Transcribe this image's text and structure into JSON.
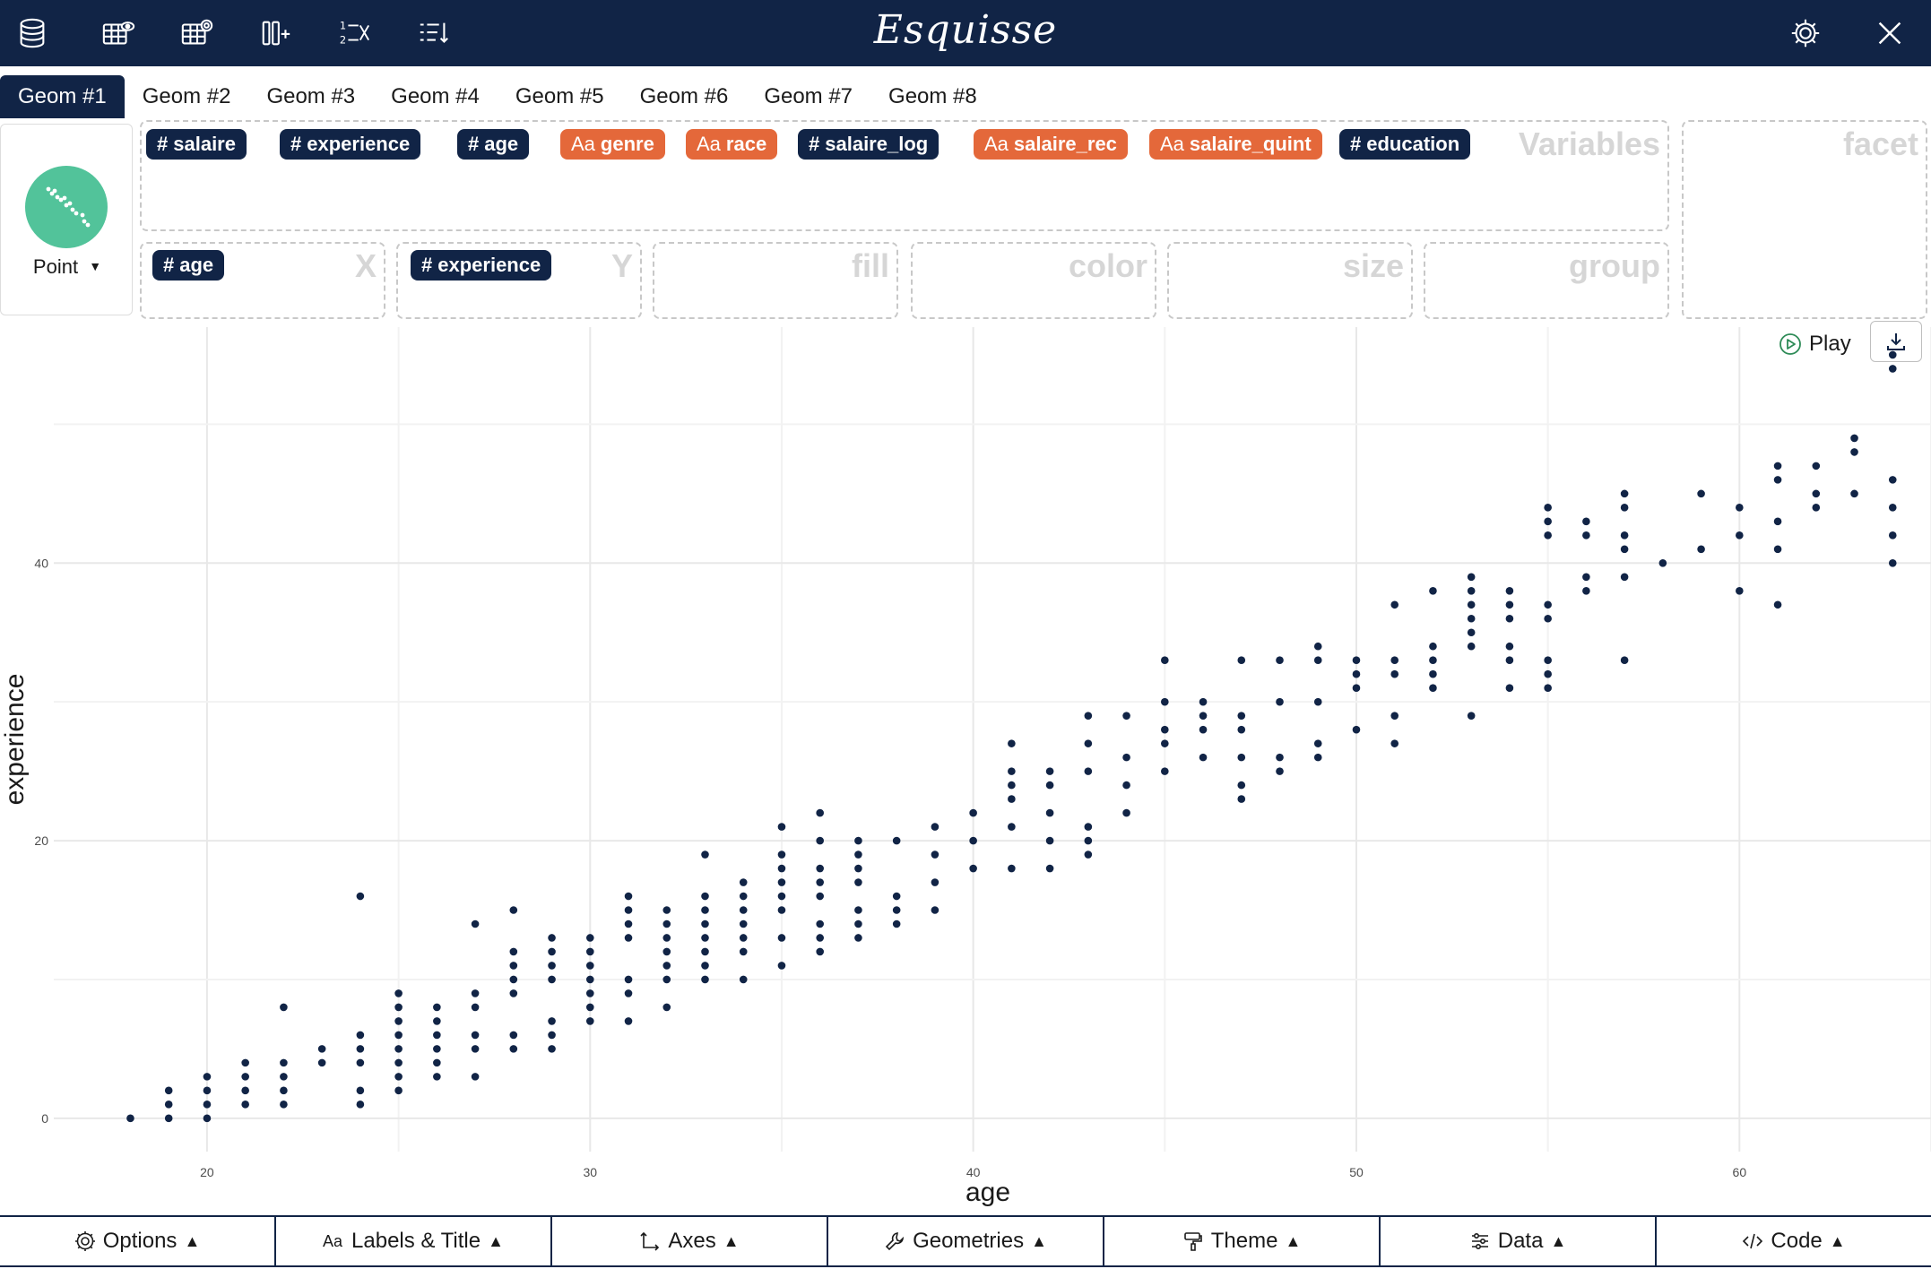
{
  "app": {
    "title": "Esquisse"
  },
  "toolbar": {
    "left_icons": [
      "database-icon",
      "table-view-icon",
      "table-settings-icon",
      "add-column-icon",
      "recode-factor-icon",
      "sort-icon"
    ],
    "right_icons": [
      "gear-icon",
      "close-icon"
    ]
  },
  "tabs": [
    {
      "label": "Geom #1",
      "active": true
    },
    {
      "label": "Geom #2"
    },
    {
      "label": "Geom #3"
    },
    {
      "label": "Geom #4"
    },
    {
      "label": "Geom #5"
    },
    {
      "label": "Geom #6"
    },
    {
      "label": "Geom #7"
    },
    {
      "label": "Geom #8"
    }
  ],
  "geom": {
    "label": "Point",
    "icon": "scatter-icon",
    "color": "#52c39a"
  },
  "variables": {
    "label": "Variables",
    "chips": [
      {
        "name": "salaire",
        "type": "numeric"
      },
      {
        "name": "experience",
        "type": "numeric"
      },
      {
        "name": "age",
        "type": "numeric"
      },
      {
        "name": "genre",
        "type": "character"
      },
      {
        "name": "race",
        "type": "character"
      },
      {
        "name": "salaire_log",
        "type": "numeric"
      },
      {
        "name": "salaire_rec",
        "type": "character"
      },
      {
        "name": "salaire_quint",
        "type": "character"
      },
      {
        "name": "education",
        "type": "numeric"
      }
    ]
  },
  "zones": {
    "facet": "facet",
    "x": {
      "label": "X",
      "chip": "age"
    },
    "y": {
      "label": "Y",
      "chip": "experience"
    },
    "fill": "fill",
    "color": "color",
    "size": "size",
    "group": "group"
  },
  "chip_icons": {
    "numeric": "#",
    "character": "Aa"
  },
  "colors": {
    "numeric": "#112446",
    "character": "#e4683a",
    "navy": "#112446"
  },
  "play": {
    "label": "Play"
  },
  "bottom": [
    {
      "label": "Options",
      "icon": "gear-icon"
    },
    {
      "label": "Labels & Title",
      "icon": "text-icon"
    },
    {
      "label": "Axes",
      "icon": "axes-icon"
    },
    {
      "label": "Geometries",
      "icon": "wrench-icon"
    },
    {
      "label": "Theme",
      "icon": "paint-roller-icon"
    },
    {
      "label": "Data",
      "icon": "sliders-icon"
    },
    {
      "label": "Code",
      "icon": "code-icon"
    }
  ],
  "chart_data": {
    "type": "scatter",
    "xlabel": "age",
    "ylabel": "experience",
    "xlim": [
      16,
      65
    ],
    "ylim": [
      -2.4,
      57
    ],
    "x_ticks": [
      20,
      30,
      40,
      50,
      60
    ],
    "y_ticks": [
      0,
      20,
      40
    ],
    "grid": true,
    "point_color": "#112446",
    "points": [
      [
        18,
        0
      ],
      [
        19,
        0
      ],
      [
        19,
        1
      ],
      [
        19,
        2
      ],
      [
        20,
        0
      ],
      [
        20,
        1
      ],
      [
        20,
        2
      ],
      [
        20,
        3
      ],
      [
        21,
        1
      ],
      [
        21,
        2
      ],
      [
        21,
        3
      ],
      [
        21,
        4
      ],
      [
        22,
        1
      ],
      [
        22,
        2
      ],
      [
        22,
        3
      ],
      [
        22,
        4
      ],
      [
        22,
        8
      ],
      [
        23,
        4
      ],
      [
        23,
        5
      ],
      [
        24,
        1
      ],
      [
        24,
        2
      ],
      [
        24,
        4
      ],
      [
        24,
        5
      ],
      [
        24,
        6
      ],
      [
        24,
        16
      ],
      [
        25,
        2
      ],
      [
        25,
        3
      ],
      [
        25,
        4
      ],
      [
        25,
        5
      ],
      [
        25,
        6
      ],
      [
        25,
        7
      ],
      [
        25,
        8
      ],
      [
        25,
        9
      ],
      [
        26,
        3
      ],
      [
        26,
        4
      ],
      [
        26,
        5
      ],
      [
        26,
        6
      ],
      [
        26,
        7
      ],
      [
        26,
        8
      ],
      [
        27,
        3
      ],
      [
        27,
        5
      ],
      [
        27,
        6
      ],
      [
        27,
        8
      ],
      [
        27,
        9
      ],
      [
        27,
        14
      ],
      [
        28,
        5
      ],
      [
        28,
        6
      ],
      [
        28,
        9
      ],
      [
        28,
        10
      ],
      [
        28,
        11
      ],
      [
        28,
        12
      ],
      [
        28,
        15
      ],
      [
        29,
        5
      ],
      [
        29,
        6
      ],
      [
        29,
        7
      ],
      [
        29,
        10
      ],
      [
        29,
        11
      ],
      [
        29,
        12
      ],
      [
        29,
        13
      ],
      [
        30,
        7
      ],
      [
        30,
        8
      ],
      [
        30,
        9
      ],
      [
        30,
        10
      ],
      [
        30,
        11
      ],
      [
        30,
        12
      ],
      [
        30,
        13
      ],
      [
        31,
        7
      ],
      [
        31,
        9
      ],
      [
        31,
        10
      ],
      [
        31,
        13
      ],
      [
        31,
        14
      ],
      [
        31,
        15
      ],
      [
        31,
        16
      ],
      [
        32,
        8
      ],
      [
        32,
        10
      ],
      [
        32,
        11
      ],
      [
        32,
        12
      ],
      [
        32,
        13
      ],
      [
        32,
        14
      ],
      [
        32,
        15
      ],
      [
        33,
        10
      ],
      [
        33,
        11
      ],
      [
        33,
        12
      ],
      [
        33,
        13
      ],
      [
        33,
        14
      ],
      [
        33,
        15
      ],
      [
        33,
        16
      ],
      [
        33,
        19
      ],
      [
        34,
        10
      ],
      [
        34,
        12
      ],
      [
        34,
        13
      ],
      [
        34,
        14
      ],
      [
        34,
        15
      ],
      [
        34,
        16
      ],
      [
        34,
        17
      ],
      [
        35,
        11
      ],
      [
        35,
        13
      ],
      [
        35,
        15
      ],
      [
        35,
        16
      ],
      [
        35,
        17
      ],
      [
        35,
        18
      ],
      [
        35,
        19
      ],
      [
        35,
        21
      ],
      [
        36,
        12
      ],
      [
        36,
        13
      ],
      [
        36,
        14
      ],
      [
        36,
        16
      ],
      [
        36,
        17
      ],
      [
        36,
        18
      ],
      [
        36,
        20
      ],
      [
        36,
        22
      ],
      [
        37,
        13
      ],
      [
        37,
        14
      ],
      [
        37,
        15
      ],
      [
        37,
        17
      ],
      [
        37,
        18
      ],
      [
        37,
        19
      ],
      [
        37,
        20
      ],
      [
        38,
        14
      ],
      [
        38,
        15
      ],
      [
        38,
        16
      ],
      [
        38,
        20
      ],
      [
        39,
        15
      ],
      [
        39,
        17
      ],
      [
        39,
        19
      ],
      [
        39,
        21
      ],
      [
        40,
        18
      ],
      [
        40,
        20
      ],
      [
        40,
        22
      ],
      [
        41,
        18
      ],
      [
        41,
        21
      ],
      [
        41,
        23
      ],
      [
        41,
        24
      ],
      [
        41,
        25
      ],
      [
        41,
        27
      ],
      [
        42,
        18
      ],
      [
        42,
        20
      ],
      [
        42,
        22
      ],
      [
        42,
        24
      ],
      [
        42,
        25
      ],
      [
        43,
        19
      ],
      [
        43,
        20
      ],
      [
        43,
        21
      ],
      [
        43,
        25
      ],
      [
        43,
        27
      ],
      [
        43,
        29
      ],
      [
        44,
        22
      ],
      [
        44,
        24
      ],
      [
        44,
        26
      ],
      [
        44,
        29
      ],
      [
        45,
        25
      ],
      [
        45,
        27
      ],
      [
        45,
        28
      ],
      [
        45,
        30
      ],
      [
        45,
        33
      ],
      [
        46,
        26
      ],
      [
        46,
        28
      ],
      [
        46,
        29
      ],
      [
        46,
        30
      ],
      [
        47,
        23
      ],
      [
        47,
        24
      ],
      [
        47,
        26
      ],
      [
        47,
        28
      ],
      [
        47,
        29
      ],
      [
        47,
        33
      ],
      [
        48,
        25
      ],
      [
        48,
        26
      ],
      [
        48,
        30
      ],
      [
        48,
        33
      ],
      [
        49,
        26
      ],
      [
        49,
        27
      ],
      [
        49,
        30
      ],
      [
        49,
        33
      ],
      [
        49,
        34
      ],
      [
        50,
        28
      ],
      [
        50,
        31
      ],
      [
        50,
        32
      ],
      [
        50,
        33
      ],
      [
        51,
        27
      ],
      [
        51,
        29
      ],
      [
        51,
        32
      ],
      [
        51,
        33
      ],
      [
        51,
        37
      ],
      [
        52,
        31
      ],
      [
        52,
        32
      ],
      [
        52,
        33
      ],
      [
        52,
        34
      ],
      [
        52,
        38
      ],
      [
        53,
        29
      ],
      [
        53,
        34
      ],
      [
        53,
        35
      ],
      [
        53,
        36
      ],
      [
        53,
        37
      ],
      [
        53,
        38
      ],
      [
        53,
        39
      ],
      [
        54,
        31
      ],
      [
        54,
        33
      ],
      [
        54,
        34
      ],
      [
        54,
        36
      ],
      [
        54,
        37
      ],
      [
        54,
        38
      ],
      [
        55,
        31
      ],
      [
        55,
        32
      ],
      [
        55,
        33
      ],
      [
        55,
        36
      ],
      [
        55,
        37
      ],
      [
        55,
        42
      ],
      [
        55,
        43
      ],
      [
        55,
        44
      ],
      [
        56,
        38
      ],
      [
        56,
        39
      ],
      [
        56,
        42
      ],
      [
        56,
        43
      ],
      [
        57,
        33
      ],
      [
        57,
        39
      ],
      [
        57,
        41
      ],
      [
        57,
        42
      ],
      [
        57,
        44
      ],
      [
        57,
        45
      ],
      [
        58,
        40
      ],
      [
        59,
        41
      ],
      [
        59,
        45
      ],
      [
        60,
        38
      ],
      [
        60,
        42
      ],
      [
        60,
        44
      ],
      [
        61,
        37
      ],
      [
        61,
        41
      ],
      [
        61,
        43
      ],
      [
        61,
        46
      ],
      [
        61,
        47
      ],
      [
        62,
        44
      ],
      [
        62,
        45
      ],
      [
        62,
        47
      ],
      [
        63,
        45
      ],
      [
        63,
        48
      ],
      [
        63,
        49
      ],
      [
        64,
        40
      ],
      [
        64,
        42
      ],
      [
        64,
        44
      ],
      [
        64,
        46
      ],
      [
        64,
        54
      ],
      [
        64,
        55
      ]
    ]
  }
}
